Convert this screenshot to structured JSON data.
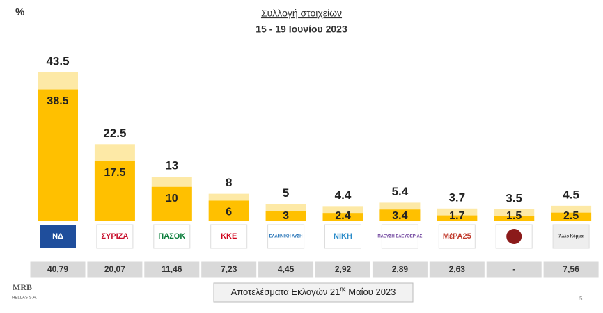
{
  "chart_data": {
    "type": "overlay-bar",
    "unit_label": "%",
    "title": "Συλλογή στοιχείων",
    "subtitle": "15 - 19 Ιουνίου 2023",
    "categories": [
      "ΝΔ",
      "ΣΥΡΙΖΑ",
      "ΠΑΣΟΚ",
      "ΚΚΕ",
      "ΕΛΛΗΝΙΚΗ ΛΥΣΗ",
      "ΝΙΚΗ",
      "ΠΛΕΥΣΗ ΕΛΕΥΘΕΡΙΑΣ",
      "ΜέΡΑ25",
      null,
      "Άλλο Κόμμα"
    ],
    "series": [
      {
        "color": "#fde9a6",
        "values": [
          43.5,
          22.5,
          13,
          8,
          5,
          4.4,
          5.4,
          3.7,
          3.5,
          4.5
        ]
      },
      {
        "color": "#ffc000",
        "values": [
          38.5,
          17.5,
          10,
          6,
          3,
          2.4,
          3.4,
          1.7,
          1.5,
          2.5
        ]
      }
    ],
    "results": [
      "40,79",
      "20,07",
      "11,46",
      "7,23",
      "4,45",
      "2,92",
      "2,89",
      "2,63",
      "-",
      "7,56"
    ],
    "footer": [
      "Αποτελέσματα Εκλογών 21",
      "ης",
      " Μαΐου 2023"
    ],
    "brand": [
      "MRB",
      "HELLAS S.A."
    ],
    "page_number": "5"
  }
}
